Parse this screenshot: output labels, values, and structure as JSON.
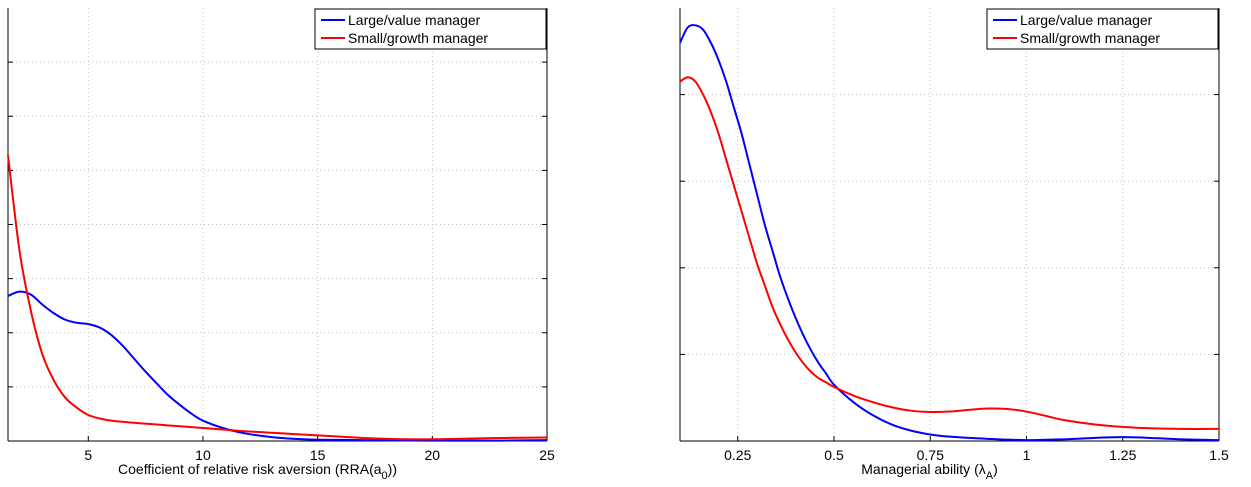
{
  "chart_data": [
    {
      "type": "line",
      "xlabel": "Coefficient of relative risk aversion (RRA(a",
      "xlabel_sub": "0",
      "xlabel_end": "))",
      "ylabel": "",
      "xlim": [
        1.5,
        25
      ],
      "ylim": [
        0,
        1
      ],
      "xticks": [
        5,
        10,
        15,
        20,
        25
      ],
      "xtick_labels": [
        "5",
        "10",
        "15",
        "20",
        "25"
      ],
      "yticks": [
        0.125,
        0.25,
        0.375,
        0.5,
        0.625,
        0.75,
        0.875
      ],
      "grid": true,
      "legend": "top-right",
      "series": [
        {
          "name": "Large/value manager",
          "color": "#0000ff",
          "x": [
            1.5,
            2.0,
            2.5,
            3.0,
            3.5,
            4.0,
            4.5,
            5.0,
            5.5,
            6.0,
            6.5,
            7.0,
            7.5,
            8.0,
            8.5,
            9.0,
            9.5,
            10.0,
            11.0,
            12.0,
            13.0,
            14.0,
            15.0,
            17.0,
            20.0,
            23.0,
            25.0
          ],
          "y": [
            0.335,
            0.345,
            0.338,
            0.315,
            0.295,
            0.28,
            0.273,
            0.27,
            0.262,
            0.245,
            0.22,
            0.19,
            0.16,
            0.132,
            0.105,
            0.083,
            0.063,
            0.047,
            0.028,
            0.016,
            0.009,
            0.005,
            0.003,
            0.002,
            0.001,
            0.001,
            0.002
          ]
        },
        {
          "name": "Small/growth manager",
          "color": "#ff0000",
          "x": [
            1.5,
            2.0,
            2.5,
            3.0,
            3.5,
            4.0,
            4.5,
            5.0,
            5.5,
            6.0,
            7.0,
            8.0,
            9.0,
            10.0,
            11.0,
            12.0,
            13.0,
            14.0,
            15.0,
            16.0,
            17.0,
            18.0,
            19.0,
            20.0,
            21.0,
            22.0,
            23.0,
            25.0
          ],
          "y": [
            0.66,
            0.44,
            0.3,
            0.2,
            0.14,
            0.1,
            0.077,
            0.06,
            0.052,
            0.047,
            0.042,
            0.038,
            0.034,
            0.03,
            0.026,
            0.022,
            0.019,
            0.016,
            0.013,
            0.01,
            0.007,
            0.005,
            0.004,
            0.004,
            0.005,
            0.006,
            0.007,
            0.008
          ]
        }
      ]
    },
    {
      "type": "line",
      "xlabel": "Managerial ability (λ",
      "xlabel_sub": "A",
      "xlabel_end": ")",
      "ylabel": "",
      "xlim": [
        0.1,
        1.5
      ],
      "ylim": [
        0,
        1
      ],
      "xticks": [
        0.25,
        0.5,
        0.75,
        1,
        1.25,
        1.5
      ],
      "xtick_labels": [
        "0.25",
        "0.5",
        "0.75",
        "1",
        "1.25",
        "1.5"
      ],
      "yticks": [
        0.2,
        0.4,
        0.6,
        0.8
      ],
      "grid": true,
      "legend": "top-right",
      "series": [
        {
          "name": "Large/value manager",
          "color": "#0000ff",
          "x": [
            0.1,
            0.12,
            0.14,
            0.16,
            0.18,
            0.2,
            0.22,
            0.24,
            0.26,
            0.28,
            0.3,
            0.32,
            0.34,
            0.36,
            0.38,
            0.4,
            0.42,
            0.44,
            0.46,
            0.48,
            0.5,
            0.55,
            0.6,
            0.65,
            0.7,
            0.75,
            0.8,
            0.9,
            1.0,
            1.1,
            1.2,
            1.25,
            1.3,
            1.4,
            1.5
          ],
          "y": [
            0.92,
            0.955,
            0.96,
            0.95,
            0.92,
            0.88,
            0.83,
            0.77,
            0.71,
            0.64,
            0.57,
            0.5,
            0.44,
            0.38,
            0.33,
            0.285,
            0.245,
            0.21,
            0.18,
            0.155,
            0.13,
            0.09,
            0.06,
            0.038,
            0.024,
            0.015,
            0.01,
            0.005,
            0.002,
            0.004,
            0.008,
            0.009,
            0.008,
            0.004,
            0.002
          ]
        },
        {
          "name": "Small/growth manager",
          "color": "#ff0000",
          "x": [
            0.1,
            0.12,
            0.14,
            0.16,
            0.18,
            0.2,
            0.22,
            0.24,
            0.26,
            0.28,
            0.3,
            0.32,
            0.34,
            0.36,
            0.38,
            0.4,
            0.42,
            0.44,
            0.46,
            0.48,
            0.5,
            0.55,
            0.6,
            0.65,
            0.7,
            0.75,
            0.8,
            0.85,
            0.9,
            0.95,
            1.0,
            1.05,
            1.1,
            1.2,
            1.3,
            1.4,
            1.5
          ],
          "y": [
            0.83,
            0.84,
            0.83,
            0.8,
            0.76,
            0.71,
            0.65,
            0.59,
            0.53,
            0.47,
            0.41,
            0.36,
            0.31,
            0.27,
            0.235,
            0.205,
            0.18,
            0.16,
            0.145,
            0.135,
            0.125,
            0.105,
            0.09,
            0.078,
            0.07,
            0.067,
            0.068,
            0.072,
            0.075,
            0.074,
            0.068,
            0.058,
            0.048,
            0.036,
            0.03,
            0.028,
            0.028
          ]
        }
      ]
    }
  ]
}
